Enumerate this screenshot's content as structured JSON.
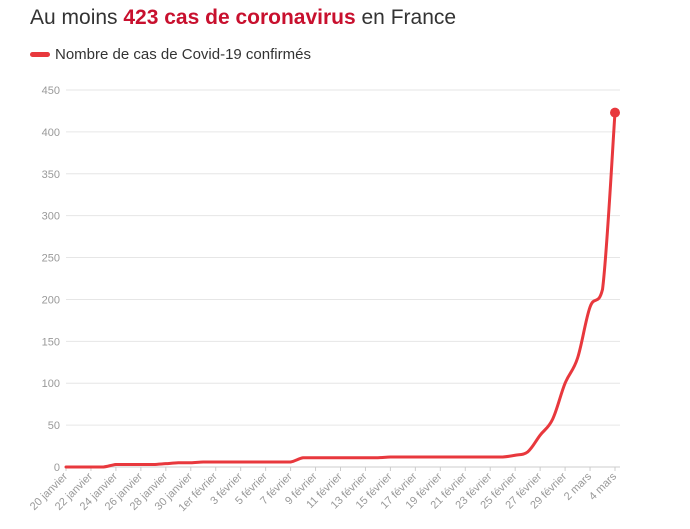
{
  "title": {
    "prefix": "Au moins ",
    "highlight": "423 cas de coronavirus",
    "suffix": " en France"
  },
  "colors": {
    "accent": "#c8102e",
    "series": "#e8383d",
    "grid": "#e6e6e6",
    "tick_text": "#999999"
  },
  "chart_data": {
    "type": "line",
    "title": "Au moins 423 cas de coronavirus en France",
    "xlabel": "",
    "ylabel": "",
    "ylim": [
      0,
      450
    ],
    "yticks": [
      0,
      50,
      100,
      150,
      200,
      250,
      300,
      350,
      400,
      450
    ],
    "grid": true,
    "legend_placement": "top-left",
    "x_tick_labels": [
      "20 janvier",
      "22 janvier",
      "24 janvier",
      "26 janvier",
      "28 janvier",
      "30 janvier",
      "1er février",
      "3 février",
      "5 février",
      "7 février",
      "9 février",
      "11 février",
      "13 février",
      "15 février",
      "17 février",
      "19 février",
      "21 février",
      "23 février",
      "25 février",
      "27 février",
      "29 février",
      "2 mars",
      "4 mars"
    ],
    "series": [
      {
        "name": "Nombre de cas de Covid-19 confirmés",
        "x": [
          "20 janvier",
          "21 janvier",
          "22 janvier",
          "23 janvier",
          "24 janvier",
          "25 janvier",
          "26 janvier",
          "27 janvier",
          "28 janvier",
          "29 janvier",
          "30 janvier",
          "31 janvier",
          "1er février",
          "2 février",
          "3 février",
          "4 février",
          "5 février",
          "6 février",
          "7 février",
          "8 février",
          "9 février",
          "10 février",
          "11 février",
          "12 février",
          "13 février",
          "14 février",
          "15 février",
          "16 février",
          "17 février",
          "18 février",
          "19 février",
          "20 février",
          "21 février",
          "22 février",
          "23 février",
          "24 février",
          "25 février",
          "26 février",
          "27 février",
          "28 février",
          "29 février",
          "1er mars",
          "2 mars",
          "3 mars",
          "4 mars"
        ],
        "values": [
          0,
          0,
          0,
          0,
          3,
          3,
          3,
          3,
          4,
          5,
          5,
          6,
          6,
          6,
          6,
          6,
          6,
          6,
          6,
          11,
          11,
          11,
          11,
          11,
          11,
          11,
          12,
          12,
          12,
          12,
          12,
          12,
          12,
          12,
          12,
          12,
          14,
          18,
          38,
          57,
          100,
          130,
          191,
          212,
          423
        ]
      }
    ]
  }
}
